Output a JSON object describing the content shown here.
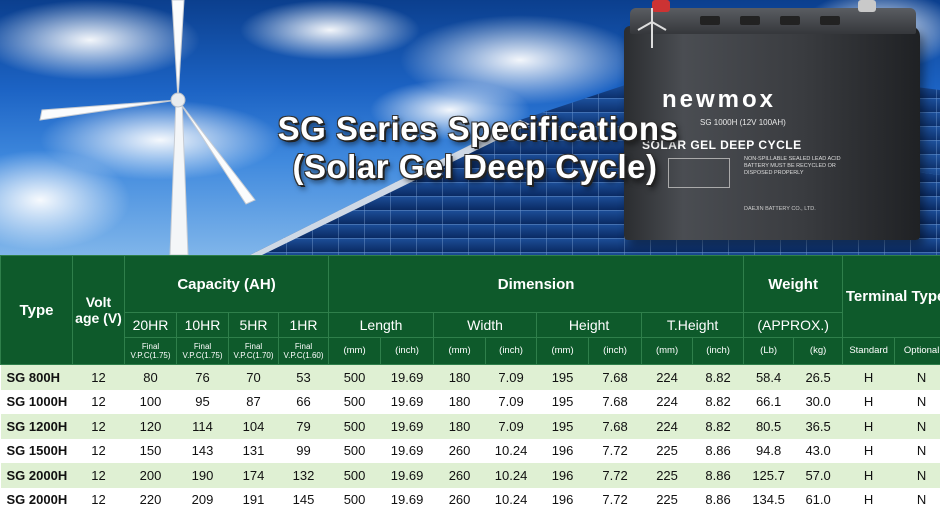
{
  "banner": {
    "title_line1": "SG Series Specifications",
    "title_line2": "(Solar Gel Deep Cycle)",
    "battery": {
      "brand": "newmox",
      "model": "SG 1000H (12V 100AH)",
      "subtitle": "SOLAR GEL DEEP CYCLE",
      "fine_print": "NON-SPILLABLE SEALED LEAD ACID BATTERY MUST BE RECYCLED OR DISPOSED PROPERLY",
      "maker": "DAEJIN BATTERY CO., LTD."
    }
  },
  "table": {
    "headers": {
      "type": "Type",
      "voltage": "Volt age (V)",
      "capacity": "Capacity (AH)",
      "dimension": "Dimension",
      "weight": "Weight",
      "terminal": "Terminal Type",
      "cap_sub": [
        "20HR",
        "10HR",
        "5HR",
        "1HR"
      ],
      "cap_final": [
        "Final",
        "Final",
        "Final",
        "Final"
      ],
      "cap_vpc": [
        "V.P.C(1.75)",
        "V.P.C(1.75)",
        "V.P.C(1.70)",
        "V.P.C(1.60)"
      ],
      "dim_sub": [
        "Length",
        "Width",
        "Height",
        "T.Height"
      ],
      "weight_sub": "(APPROX.)",
      "dim_units": [
        "(mm)",
        "(inch)",
        "(mm)",
        "(inch)",
        "(mm)",
        "(inch)",
        "(mm)",
        "(inch)"
      ],
      "weight_units": [
        "(Lb)",
        "(kg)"
      ],
      "terminal_units": [
        "Standard",
        "Optional"
      ]
    },
    "rows": [
      [
        "SG 800H",
        "12",
        "80",
        "76",
        "70",
        "53",
        "500",
        "19.69",
        "180",
        "7.09",
        "195",
        "7.68",
        "224",
        "8.82",
        "58.4",
        "26.5",
        "H",
        "N"
      ],
      [
        "SG 1000H",
        "12",
        "100",
        "95",
        "87",
        "66",
        "500",
        "19.69",
        "180",
        "7.09",
        "195",
        "7.68",
        "224",
        "8.82",
        "66.1",
        "30.0",
        "H",
        "N"
      ],
      [
        "SG 1200H",
        "12",
        "120",
        "114",
        "104",
        "79",
        "500",
        "19.69",
        "180",
        "7.09",
        "195",
        "7.68",
        "224",
        "8.82",
        "80.5",
        "36.5",
        "H",
        "N"
      ],
      [
        "SG 1500H",
        "12",
        "150",
        "143",
        "131",
        "99",
        "500",
        "19.69",
        "260",
        "10.24",
        "196",
        "7.72",
        "225",
        "8.86",
        "94.8",
        "43.0",
        "H",
        "N"
      ],
      [
        "SG 2000H",
        "12",
        "200",
        "190",
        "174",
        "132",
        "500",
        "19.69",
        "260",
        "10.24",
        "196",
        "7.72",
        "225",
        "8.86",
        "125.7",
        "57.0",
        "H",
        "N"
      ],
      [
        "SG 2000H",
        "12",
        "220",
        "209",
        "191",
        "145",
        "500",
        "19.69",
        "260",
        "10.24",
        "196",
        "7.72",
        "225",
        "8.86",
        "134.5",
        "61.0",
        "H",
        "N"
      ]
    ]
  },
  "colors": {
    "header_green": "#0e5a2b",
    "row_tint": "#dff0d3",
    "sky": "#1c63c4"
  }
}
